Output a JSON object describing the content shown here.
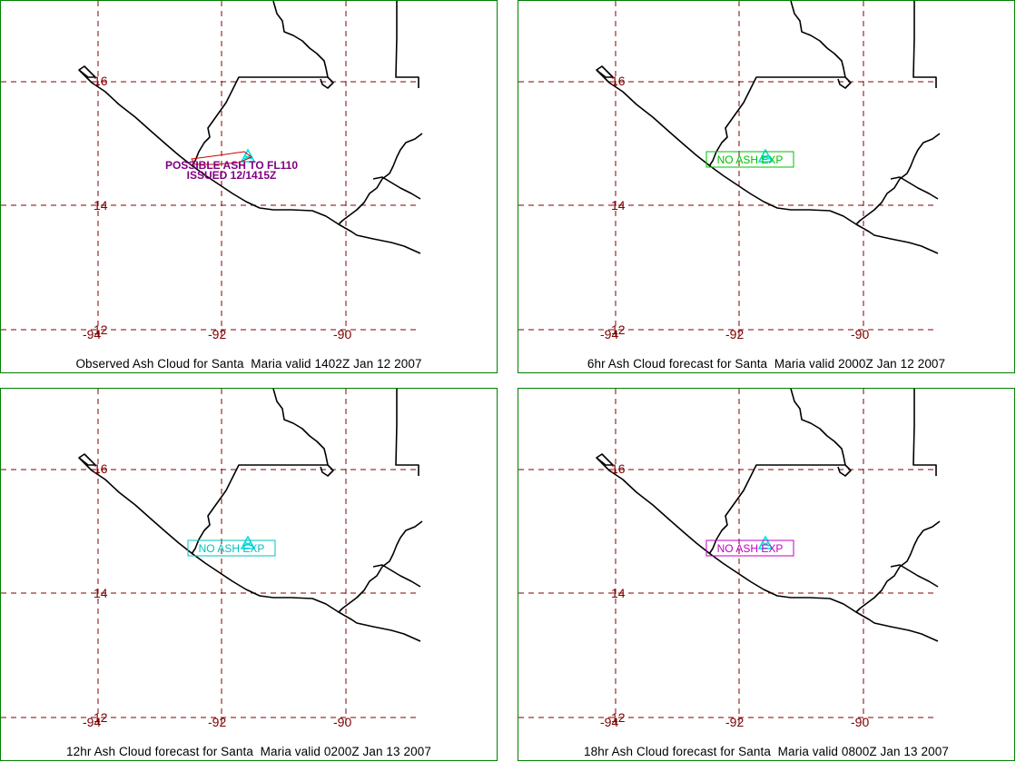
{
  "colors": {
    "grid": "#800000",
    "border": "#008000",
    "coast": "#000000",
    "volcano": "#00e0e0"
  },
  "axes": {
    "lat_labels": [
      "16",
      "14",
      "12"
    ],
    "lon_labels": [
      "-94",
      "-92",
      "-90"
    ]
  },
  "panels": [
    {
      "caption": "Observed Ash Cloud for Santa  Maria valid 1402Z Jan 12 2007",
      "annotation_lines": [
        "POSSIBLE ASH TO FL110",
        "ISSUED 12/1415Z"
      ],
      "annotation_color": "#800080",
      "box_label": "",
      "box_color": "",
      "volcano_icon": "volcano-triangle-icon"
    },
    {
      "caption": "6hr Ash Cloud forecast for Santa  Maria valid 2000Z Jan 12 2007",
      "annotation_lines": [],
      "box_label": "NO ASH EXP",
      "box_color": "#00c000",
      "volcano_icon": "volcano-triangle-icon"
    },
    {
      "caption": "12hr Ash Cloud forecast for Santa  Maria valid 0200Z Jan 13 2007",
      "annotation_lines": [],
      "box_label": "NO ASH EXP",
      "box_color": "#00c0c0",
      "volcano_icon": "volcano-triangle-icon"
    },
    {
      "caption": "18hr Ash Cloud forecast for Santa  Maria valid 0800Z Jan 13 2007",
      "annotation_lines": [],
      "box_label": "NO ASH EXP",
      "box_color": "#c000c0",
      "volcano_icon": "volcano-triangle-icon"
    }
  ]
}
